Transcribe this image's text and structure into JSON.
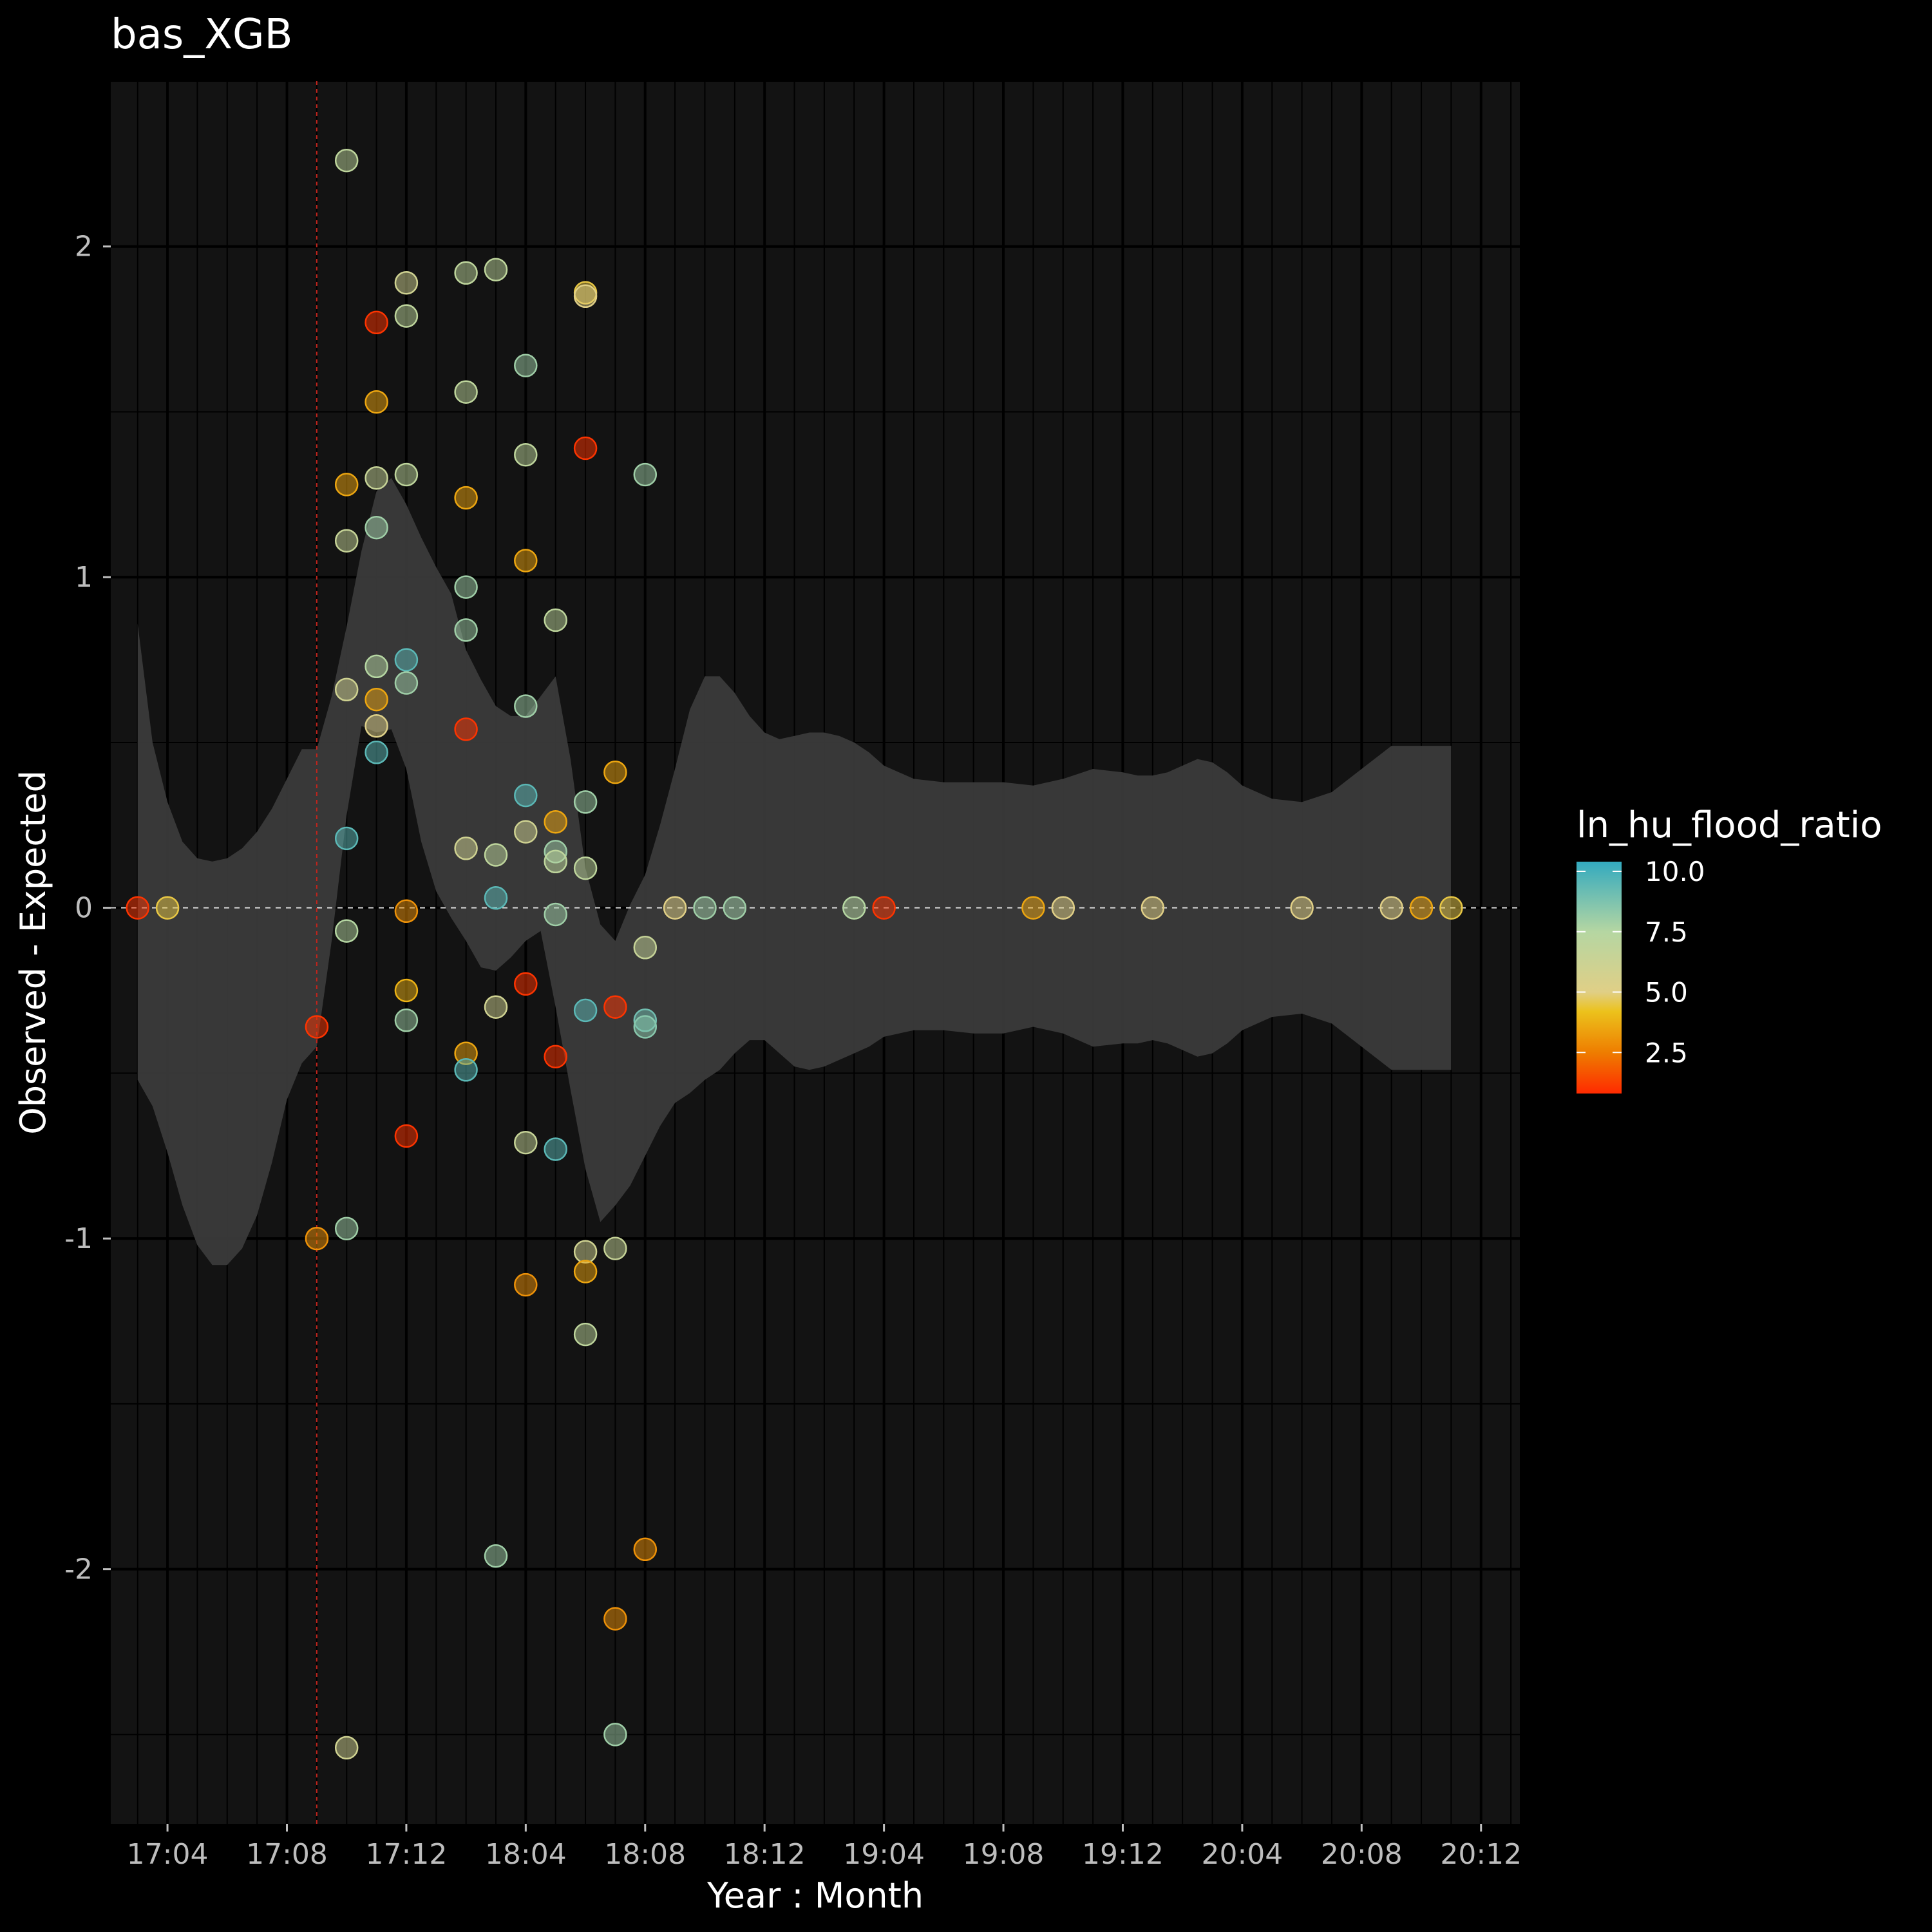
{
  "chart_data": {
    "type": "scatter",
    "title": "bas_XGB",
    "xlabel": "Year : Month",
    "ylabel": "Observed - Expected",
    "x_ticks": [
      "17:04",
      "17:08",
      "17:12",
      "18:04",
      "18:08",
      "18:12",
      "19:04",
      "19:08",
      "19:12",
      "20:04",
      "20:08",
      "20:12"
    ],
    "x_tick_positions": [
      4,
      8,
      12,
      16,
      20,
      24,
      28,
      32,
      36,
      40,
      44,
      48
    ],
    "xlim": [
      2.1,
      49.3
    ],
    "y_ticks": [
      "-2",
      "-1",
      "0",
      "1",
      "2"
    ],
    "y_tick_values": [
      -2,
      -1,
      0,
      1,
      2
    ],
    "ylim": [
      -2.77,
      2.5
    ],
    "vertical_reference_x": 9,
    "legend": {
      "title": "ln_hu_flood_ratio",
      "position": "right",
      "labels": [
        "10.0",
        "7.5",
        "5.0",
        "2.5"
      ],
      "values": [
        10.0,
        7.5,
        5.0,
        2.5
      ],
      "range": [
        0.8,
        10.4
      ],
      "gradient_stops": [
        {
          "value": 0.8,
          "color": "#ff2a00"
        },
        {
          "value": 2.5,
          "color": "#ee7d00"
        },
        {
          "value": 4.2,
          "color": "#ecc21c"
        },
        {
          "value": 5.0,
          "color": "#e0cf86"
        },
        {
          "value": 7.5,
          "color": "#b5d6a2"
        },
        {
          "value": 10.4,
          "color": "#33aabf"
        }
      ]
    },
    "ribbon": {
      "x": [
        3,
        3.5,
        4,
        4.5,
        5,
        5.5,
        6,
        6.5,
        7,
        7.5,
        8,
        8.5,
        9,
        9.5,
        10,
        10.5,
        11,
        11.5,
        12,
        12.5,
        13,
        13.5,
        14,
        14.5,
        15,
        15.5,
        16,
        16.5,
        17,
        17.5,
        18,
        18.5,
        19,
        19.5,
        20,
        20.5,
        21,
        21.5,
        22,
        22.5,
        23,
        23.5,
        24,
        24.5,
        25,
        25.5,
        26,
        26.5,
        27,
        27.5,
        28,
        29,
        30,
        31,
        32,
        33,
        34,
        35,
        36,
        36.5,
        37,
        37.5,
        38,
        38.5,
        39,
        39.5,
        40,
        41,
        42,
        43,
        44,
        45,
        45.5,
        46,
        46.5,
        47
      ],
      "upper": [
        0.86,
        0.5,
        0.32,
        0.2,
        0.15,
        0.14,
        0.15,
        0.18,
        0.23,
        0.3,
        0.39,
        0.48,
        0.48,
        0.64,
        0.85,
        1.08,
        1.26,
        1.3,
        1.22,
        1.12,
        1.03,
        0.95,
        0.78,
        0.69,
        0.61,
        0.58,
        0.58,
        0.64,
        0.7,
        0.45,
        0.12,
        -0.05,
        -0.1,
        0.01,
        0.1,
        0.25,
        0.42,
        0.6,
        0.7,
        0.7,
        0.65,
        0.58,
        0.53,
        0.51,
        0.52,
        0.53,
        0.53,
        0.52,
        0.5,
        0.47,
        0.43,
        0.39,
        0.38,
        0.38,
        0.38,
        0.37,
        0.39,
        0.42,
        0.41,
        0.4,
        0.4,
        0.41,
        0.43,
        0.45,
        0.44,
        0.41,
        0.37,
        0.33,
        0.32,
        0.35,
        0.42,
        0.49,
        0.49,
        0.49,
        0.49,
        0.49
      ],
      "lower": [
        -0.52,
        -0.6,
        -0.74,
        -0.9,
        -1.02,
        -1.08,
        -1.08,
        -1.03,
        -0.93,
        -0.77,
        -0.58,
        -0.47,
        -0.42,
        -0.1,
        0.28,
        0.55,
        0.53,
        0.54,
        0.42,
        0.2,
        0.05,
        -0.03,
        -0.1,
        -0.18,
        -0.19,
        -0.15,
        -0.1,
        -0.07,
        -0.3,
        -0.55,
        -0.79,
        -0.95,
        -0.9,
        -0.84,
        -0.75,
        -0.66,
        -0.59,
        -0.56,
        -0.52,
        -0.49,
        -0.44,
        -0.4,
        -0.4,
        -0.44,
        -0.48,
        -0.49,
        -0.48,
        -0.46,
        -0.44,
        -0.42,
        -0.39,
        -0.37,
        -0.37,
        -0.38,
        -0.38,
        -0.36,
        -0.38,
        -0.42,
        -0.41,
        -0.41,
        -0.4,
        -0.41,
        -0.43,
        -0.45,
        -0.44,
        -0.41,
        -0.37,
        -0.33,
        -0.32,
        -0.35,
        -0.42,
        -0.49,
        -0.49,
        -0.49,
        -0.49,
        -0.49
      ]
    },
    "points": [
      {
        "x": 3,
        "y": 0,
        "c": 1.0
      },
      {
        "x": 4,
        "y": 0,
        "c": 4.5
      },
      {
        "x": 9,
        "y": -0.36,
        "c": 1.0
      },
      {
        "x": 9,
        "y": -1.0,
        "c": 3.0
      },
      {
        "x": 10,
        "y": 2.26,
        "c": 7.0
      },
      {
        "x": 10,
        "y": 1.28,
        "c": 3.5
      },
      {
        "x": 10,
        "y": 1.11,
        "c": 6.5
      },
      {
        "x": 10,
        "y": 0.66,
        "c": 6.0
      },
      {
        "x": 10,
        "y": 0.21,
        "c": 9.5
      },
      {
        "x": 10,
        "y": -0.07,
        "c": 7.5
      },
      {
        "x": 10,
        "y": -0.97,
        "c": 8.0
      },
      {
        "x": 10,
        "y": -2.54,
        "c": 6.0
      },
      {
        "x": 11,
        "y": 1.77,
        "c": 1.0
      },
      {
        "x": 11,
        "y": 1.53,
        "c": 3.5
      },
      {
        "x": 11,
        "y": 1.3,
        "c": 6.5
      },
      {
        "x": 11,
        "y": 1.15,
        "c": 8.0
      },
      {
        "x": 11,
        "y": 0.73,
        "c": 7.5
      },
      {
        "x": 11,
        "y": 0.63,
        "c": 3.5
      },
      {
        "x": 11,
        "y": 0.55,
        "c": 5.2
      },
      {
        "x": 11,
        "y": 0.47,
        "c": 9.5
      },
      {
        "x": 12,
        "y": 1.89,
        "c": 6.0
      },
      {
        "x": 12,
        "y": 1.79,
        "c": 7.0
      },
      {
        "x": 12,
        "y": 1.31,
        "c": 7.0
      },
      {
        "x": 12,
        "y": 0.75,
        "c": 9.5
      },
      {
        "x": 12,
        "y": 0.68,
        "c": 8.0
      },
      {
        "x": 12,
        "y": -0.01,
        "c": 3.0
      },
      {
        "x": 12,
        "y": -0.25,
        "c": 3.8
      },
      {
        "x": 12,
        "y": -0.34,
        "c": 8.0
      },
      {
        "x": 12,
        "y": -0.69,
        "c": 1.0
      },
      {
        "x": 14,
        "y": 1.92,
        "c": 7.0
      },
      {
        "x": 14,
        "y": 1.56,
        "c": 7.0
      },
      {
        "x": 14,
        "y": 1.24,
        "c": 3.5
      },
      {
        "x": 14,
        "y": 0.97,
        "c": 8.0
      },
      {
        "x": 14,
        "y": 0.84,
        "c": 8.0
      },
      {
        "x": 14,
        "y": 0.54,
        "c": 1.0
      },
      {
        "x": 14,
        "y": 0.18,
        "c": 6.0
      },
      {
        "x": 14,
        "y": -0.44,
        "c": 3.5
      },
      {
        "x": 14,
        "y": -0.49,
        "c": 9.5
      },
      {
        "x": 15,
        "y": 1.93,
        "c": 7.0
      },
      {
        "x": 15,
        "y": 0.16,
        "c": 7.0
      },
      {
        "x": 15,
        "y": 0.03,
        "c": 9.5
      },
      {
        "x": 15,
        "y": -0.3,
        "c": 6.0
      },
      {
        "x": 15,
        "y": -1.96,
        "c": 8.0
      },
      {
        "x": 16,
        "y": 1.64,
        "c": 8.0
      },
      {
        "x": 16,
        "y": 1.37,
        "c": 7.0
      },
      {
        "x": 16,
        "y": 1.05,
        "c": 3.5
      },
      {
        "x": 16,
        "y": 0.61,
        "c": 8.0
      },
      {
        "x": 16,
        "y": 0.34,
        "c": 9.5
      },
      {
        "x": 16,
        "y": 0.23,
        "c": 6.0
      },
      {
        "x": 16,
        "y": -0.23,
        "c": 1.0
      },
      {
        "x": 16,
        "y": -0.71,
        "c": 6.5
      },
      {
        "x": 16,
        "y": -1.14,
        "c": 3.0
      },
      {
        "x": 17,
        "y": 0.87,
        "c": 7.0
      },
      {
        "x": 17,
        "y": 0.26,
        "c": 3.5
      },
      {
        "x": 17,
        "y": 0.17,
        "c": 8.0
      },
      {
        "x": 17,
        "y": 0.14,
        "c": 7.0
      },
      {
        "x": 17,
        "y": -0.02,
        "c": 8.0
      },
      {
        "x": 17,
        "y": -0.45,
        "c": 1.0
      },
      {
        "x": 17,
        "y": -0.73,
        "c": 9.5
      },
      {
        "x": 18,
        "y": 1.86,
        "c": 4.5
      },
      {
        "x": 18,
        "y": 1.85,
        "c": 5.0
      },
      {
        "x": 18,
        "y": 1.39,
        "c": 1.0
      },
      {
        "x": 18,
        "y": 0.32,
        "c": 8.0
      },
      {
        "x": 18,
        "y": 0.12,
        "c": 7.0
      },
      {
        "x": 18,
        "y": -0.31,
        "c": 9.5
      },
      {
        "x": 18,
        "y": -1.04,
        "c": 6.0
      },
      {
        "x": 18,
        "y": -1.1,
        "c": 3.5
      },
      {
        "x": 18,
        "y": -1.29,
        "c": 7.0
      },
      {
        "x": 19,
        "y": 0.41,
        "c": 3.5
      },
      {
        "x": 19,
        "y": -0.3,
        "c": 1.0
      },
      {
        "x": 19,
        "y": -1.03,
        "c": 6.5
      },
      {
        "x": 19,
        "y": -2.15,
        "c": 3.0
      },
      {
        "x": 19,
        "y": -2.5,
        "c": 8.0
      },
      {
        "x": 20,
        "y": 1.31,
        "c": 8.0
      },
      {
        "x": 20,
        "y": -0.12,
        "c": 6.5
      },
      {
        "x": 20,
        "y": -0.34,
        "c": 9.0
      },
      {
        "x": 20,
        "y": -0.36,
        "c": 8.5
      },
      {
        "x": 20,
        "y": -1.94,
        "c": 3.0
      },
      {
        "x": 21,
        "y": 0,
        "c": 5.0
      },
      {
        "x": 22,
        "y": 0,
        "c": 8.0
      },
      {
        "x": 23,
        "y": 0,
        "c": 8.0
      },
      {
        "x": 27,
        "y": 0,
        "c": 7.5
      },
      {
        "x": 28,
        "y": 0,
        "c": 1.0
      },
      {
        "x": 33,
        "y": 0,
        "c": 3.5
      },
      {
        "x": 34,
        "y": 0,
        "c": 5.0
      },
      {
        "x": 37,
        "y": 0,
        "c": 5.0
      },
      {
        "x": 42,
        "y": 0,
        "c": 5.0
      },
      {
        "x": 45,
        "y": 0,
        "c": 5.0
      },
      {
        "x": 46,
        "y": 0,
        "c": 3.5
      },
      {
        "x": 47,
        "y": 0,
        "c": 4.5
      }
    ]
  }
}
